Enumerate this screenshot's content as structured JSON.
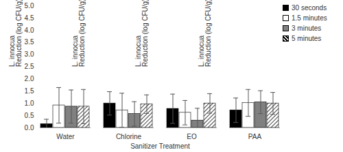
{
  "chart_data": {
    "type": "bar",
    "ylabel": "L. innocua\nReduction (log CFU/g)",
    "xlabel": "Sanitizer Treatment",
    "categories": [
      "Water",
      "Chlorine",
      "EO",
      "PAA"
    ],
    "series": [
      {
        "name": "30 seconds",
        "color": "#000000",
        "values": [
          0.15,
          1.0,
          0.78,
          0.72
        ],
        "errors": [
          0.2,
          0.48,
          0.6,
          0.5
        ]
      },
      {
        "name": "1.5 minutes",
        "color": "#ffffff",
        "values": [
          0.92,
          0.72,
          0.62,
          1.02
        ],
        "errors": [
          0.73,
          0.7,
          0.5,
          0.55
        ]
      },
      {
        "name": "3 minutes",
        "color": "#808080",
        "values": [
          0.87,
          0.57,
          0.3,
          1.05
        ],
        "errors": [
          0.68,
          0.5,
          0.5,
          0.47
        ]
      },
      {
        "name": "5 minutes",
        "color": "#ffffff",
        "line_style": "hatched",
        "values": [
          0.87,
          0.97,
          1.0,
          1.0
        ],
        "errors": [
          0.7,
          0.38,
          0.4,
          0.45
        ]
      }
    ],
    "ylim": [
      0,
      5
    ],
    "yticks": [
      {
        "value": 0,
        "label": "0.0"
      },
      {
        "value": 0.5,
        "label": "0.5"
      },
      {
        "value": 1,
        "label": "1.0"
      },
      {
        "value": 1.5,
        "label": "1.5"
      },
      {
        "value": 2,
        "label": "2.0"
      },
      {
        "value": 2.5,
        "label": "2.5"
      },
      {
        "value": 3,
        "label": "3.0"
      },
      {
        "value": 3.5,
        "label": "3.5"
      },
      {
        "value": 4,
        "label": "4.0"
      },
      {
        "value": 4.5,
        "label": "4.5"
      },
      {
        "value": 5,
        "label": "5.0"
      }
    ],
    "legend": "top-right",
    "grid": false
  }
}
